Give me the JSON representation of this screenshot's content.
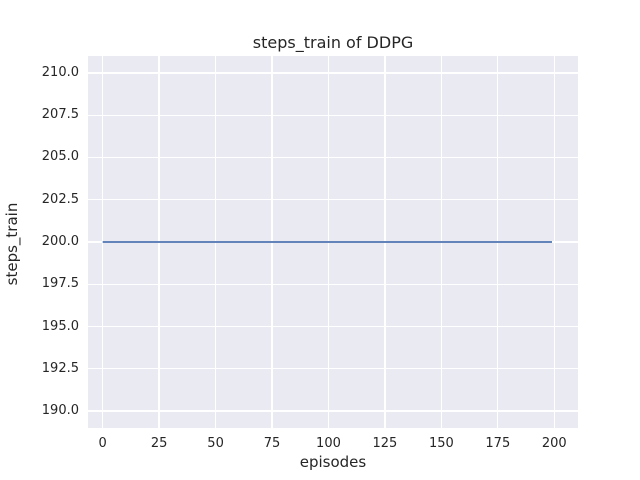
{
  "colors": {
    "figure_background": "#ffffff",
    "plot_background": "#eaeaf2",
    "gridline": "#ffffff",
    "line": "#4c72b0",
    "text": "#262626"
  },
  "chart_data": {
    "type": "line",
    "title": "steps_train of DDPG",
    "xlabel": "episodes",
    "ylabel": "steps_train",
    "xlim": [
      -6.5,
      210.5
    ],
    "ylim": [
      189,
      211
    ],
    "grid": true,
    "legend": "none",
    "xticks": [
      {
        "value": 0,
        "label": "0"
      },
      {
        "value": 25,
        "label": "25"
      },
      {
        "value": 50,
        "label": "50"
      },
      {
        "value": 75,
        "label": "75"
      },
      {
        "value": 100,
        "label": "100"
      },
      {
        "value": 125,
        "label": "125"
      },
      {
        "value": 150,
        "label": "150"
      },
      {
        "value": 175,
        "label": "175"
      },
      {
        "value": 200,
        "label": "200"
      }
    ],
    "yticks": [
      {
        "value": 190.0,
        "label": "190.0"
      },
      {
        "value": 192.5,
        "label": "192.5"
      },
      {
        "value": 195.0,
        "label": "195.0"
      },
      {
        "value": 197.5,
        "label": "197.5"
      },
      {
        "value": 200.0,
        "label": "200.0"
      },
      {
        "value": 202.5,
        "label": "202.5"
      },
      {
        "value": 205.0,
        "label": "205.0"
      },
      {
        "value": 207.5,
        "label": "207.5"
      },
      {
        "value": 210.0,
        "label": "210.0"
      }
    ],
    "series": [
      {
        "name": "steps_train",
        "color": "#4c72b0",
        "description": "constant value 200 for episodes 0 through 199",
        "x": [
          0,
          199
        ],
        "y": [
          200,
          200
        ]
      }
    ]
  }
}
